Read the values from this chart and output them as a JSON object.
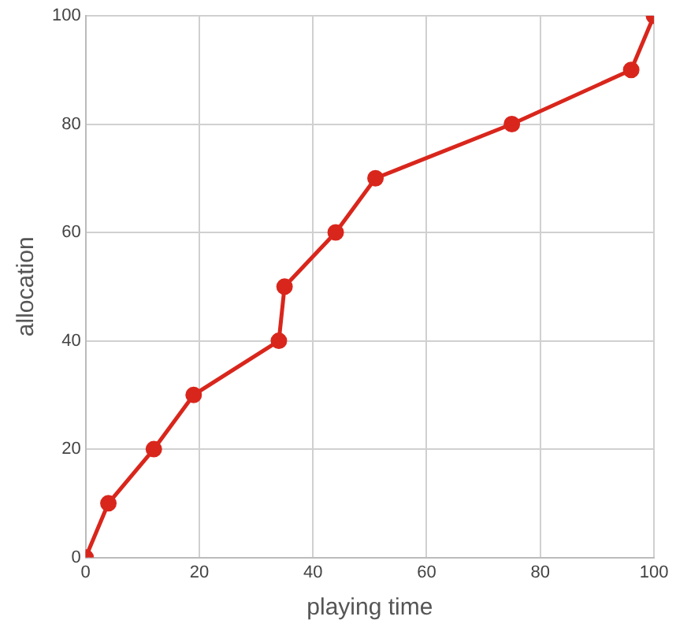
{
  "chart_data": {
    "type": "line",
    "xlabel": "playing time",
    "ylabel": "allocation",
    "x": [
      0,
      4,
      12,
      19,
      34,
      35,
      44,
      51,
      75,
      96,
      100
    ],
    "series": [
      {
        "color": "#d9261c",
        "values": [
          0,
          10,
          20,
          30,
          40,
          50,
          60,
          70,
          80,
          90,
          100
        ]
      }
    ],
    "xlim": [
      0,
      100
    ],
    "xticks": [
      0,
      20,
      40,
      60,
      80,
      100
    ],
    "ylim": [
      0,
      100
    ],
    "yticks": [
      0,
      20,
      40,
      60,
      80,
      100
    ],
    "grid": true,
    "legend": false,
    "marker": "circle",
    "line_style": "solid"
  }
}
